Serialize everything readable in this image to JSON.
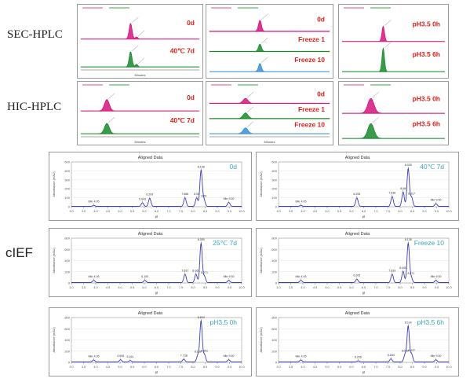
{
  "row_labels": {
    "sec": "SEC-HPLC",
    "hic": "HIC-HPLC",
    "cief": "cIEF"
  },
  "colors": {
    "pink": "#d4147d",
    "green": "#1a8a2c",
    "blue": "#3a8fd4",
    "red_label": "#e0201a",
    "teal_label": "#38a8b8",
    "cief_trace": "#3b3bc0",
    "header_red": "#e05080",
    "header_green": "#36a848",
    "header_blue": "#4068c8"
  },
  "chart_data": [
    {
      "id": "sec-a",
      "type": "line",
      "group": "SEC-HPLC",
      "axis_label": "Minutes",
      "series": [
        {
          "name": "0d",
          "color": "pink",
          "peaks": [
            {
              "x": 0.42,
              "h": 0.62,
              "w": 0.012
            },
            {
              "x": 0.47,
              "h": 0.08,
              "w": 0.01
            }
          ]
        },
        {
          "name": "40℃ 7d",
          "color": "green",
          "peaks": [
            {
              "x": 0.42,
              "h": 0.6,
              "w": 0.012
            },
            {
              "x": 0.47,
              "h": 0.1,
              "w": 0.01
            }
          ]
        }
      ]
    },
    {
      "id": "sec-b",
      "type": "line",
      "group": "SEC-HPLC",
      "axis_label": "",
      "series": [
        {
          "name": "0d",
          "color": "pink",
          "peaks": [
            {
              "x": 0.42,
              "h": 0.6,
              "w": 0.012
            }
          ]
        },
        {
          "name": "Freeze 1",
          "color": "green",
          "peaks": [
            {
              "x": 0.42,
              "h": 0.4,
              "w": 0.012
            }
          ]
        },
        {
          "name": "Freeze 10",
          "color": "blue",
          "peaks": [
            {
              "x": 0.42,
              "h": 0.45,
              "w": 0.012
            }
          ]
        }
      ]
    },
    {
      "id": "sec-c",
      "type": "line",
      "group": "SEC-HPLC",
      "axis_label": "",
      "series": [
        {
          "name": "pH3.5 0h",
          "color": "pink",
          "peaks": [
            {
              "x": 0.4,
              "h": 0.55,
              "w": 0.012
            }
          ]
        },
        {
          "name": "pH3.5 6h",
          "color": "green",
          "peaks": [
            {
              "x": 0.4,
              "h": 0.85,
              "w": 0.012
            }
          ]
        }
      ]
    },
    {
      "id": "hic-a",
      "type": "line",
      "group": "HIC-HPLC",
      "axis_label": "Minutes",
      "series": [
        {
          "name": "0d",
          "color": "pink",
          "peaks": [
            {
              "x": 0.22,
              "h": 0.55,
              "w": 0.02
            }
          ]
        },
        {
          "name": "40℃ 7d",
          "color": "green",
          "peaks": [
            {
              "x": 0.22,
              "h": 0.5,
              "w": 0.02
            }
          ]
        }
      ]
    },
    {
      "id": "hic-b",
      "type": "line",
      "group": "HIC-HPLC",
      "axis_label": "Minutes",
      "series": [
        {
          "name": "0d",
          "color": "pink",
          "peaks": [
            {
              "x": 0.3,
              "h": 0.35,
              "w": 0.02
            }
          ]
        },
        {
          "name": "Freeze 1",
          "color": "green",
          "peaks": [
            {
              "x": 0.3,
              "h": 0.4,
              "w": 0.02
            }
          ]
        },
        {
          "name": "Freeze 10",
          "color": "blue",
          "peaks": [
            {
              "x": 0.3,
              "h": 0.42,
              "w": 0.02
            }
          ]
        }
      ]
    },
    {
      "id": "hic-c",
      "type": "line",
      "group": "HIC-HPLC",
      "axis_label": "",
      "series": [
        {
          "name": "pH3.5 0h",
          "color": "pink",
          "peaks": [
            {
              "x": 0.28,
              "h": 0.65,
              "w": 0.03
            }
          ]
        },
        {
          "name": "pH3.5 6h",
          "color": "green",
          "peaks": [
            {
              "x": 0.28,
              "h": 0.65,
              "w": 0.03
            }
          ]
        }
      ]
    },
    {
      "id": "cief-0d",
      "type": "line",
      "group": "cIEF",
      "title": "Aligned Data",
      "label": "0d",
      "xlabel": "pI",
      "ylabel": "Absorbance (mAU)",
      "xlim": [
        3.0,
        10.0
      ],
      "ylim": [
        0,
        500
      ],
      "xticks": [
        "3.0",
        "3.5",
        "4.0",
        "4.5",
        "5.0",
        "5.5",
        "6.0",
        "6.5",
        "7.0",
        "7.5",
        "8.0",
        "8.5",
        "9.0",
        "9.5",
        "10.0"
      ],
      "yticks": [
        "0",
        "100",
        "200",
        "300",
        "400",
        "500"
      ],
      "peaks": [
        {
          "x": 3.92,
          "y": 12,
          "label": "Mkr 4.05",
          "w": 0.02
        },
        {
          "x": 5.92,
          "y": 40,
          "label": "5.943",
          "w": 0.02
        },
        {
          "x": 6.22,
          "y": 90,
          "label": "6.209",
          "w": 0.02
        },
        {
          "x": 7.67,
          "y": 95,
          "label": "7.686",
          "w": 0.02
        },
        {
          "x": 8.15,
          "y": 95,
          "label": "8.06",
          "w": 0.02
        },
        {
          "x": 8.33,
          "y": 400,
          "label": "8.138",
          "w": 0.02
        },
        {
          "x": 8.45,
          "y": 75,
          "label": "8.26",
          "w": 0.02
        },
        {
          "x": 9.47,
          "y": 45,
          "label": "Mkr 9.50",
          "w": 0.02
        }
      ]
    },
    {
      "id": "cief-40c",
      "type": "line",
      "group": "cIEF",
      "title": "Aligned Data",
      "label": "40℃ 7d",
      "xlabel": "pI",
      "ylabel": "Absorbance (mAU)",
      "xlim": [
        3.0,
        10.0
      ],
      "ylim": [
        0,
        500
      ],
      "xticks": [
        "3.0",
        "3.5",
        "4.0",
        "4.5",
        "5.0",
        "5.5",
        "6.0",
        "6.5",
        "7.0",
        "7.5",
        "8.0",
        "8.5",
        "9.0",
        "9.5",
        "10.0"
      ],
      "yticks": [
        "0",
        "100",
        "200",
        "300",
        "400",
        "500"
      ],
      "peaks": [
        {
          "x": 3.92,
          "y": 12,
          "label": "Mkr 4.05",
          "w": 0.02
        },
        {
          "x": 6.22,
          "y": 95,
          "label": "6.206",
          "w": 0.02
        },
        {
          "x": 7.67,
          "y": 110,
          "label": "7.638",
          "w": 0.02
        },
        {
          "x": 8.12,
          "y": 160,
          "label": "8.08",
          "w": 0.02
        },
        {
          "x": 8.33,
          "y": 420,
          "label": "8.035",
          "w": 0.02
        },
        {
          "x": 8.47,
          "y": 100,
          "label": "8.317",
          "w": 0.02
        },
        {
          "x": 9.47,
          "y": 30,
          "label": "Mkr 9.50",
          "w": 0.02
        }
      ]
    },
    {
      "id": "cief-25c",
      "type": "line",
      "group": "cIEF",
      "title": "Aligned Data",
      "label": "25℃ 7d",
      "xlabel": "pI",
      "ylabel": "Absorbance (mAU)",
      "xlim": [
        3.0,
        10.0
      ],
      "ylim": [
        0,
        800
      ],
      "xticks": [
        "3.0",
        "3.5",
        "4.0",
        "4.5",
        "5.0",
        "5.5",
        "6.0",
        "6.5",
        "7.0",
        "7.5",
        "8.0",
        "8.5",
        "9.0",
        "9.5",
        "10.0"
      ],
      "yticks": [
        "0",
        "200",
        "400",
        "600",
        "800"
      ],
      "peaks": [
        {
          "x": 3.92,
          "y": 40,
          "label": "Mkr 4.05",
          "w": 0.02
        },
        {
          "x": 6.02,
          "y": 40,
          "label": "6.100",
          "w": 0.02
        },
        {
          "x": 7.67,
          "y": 150,
          "label": "7.637",
          "w": 0.02
        },
        {
          "x": 8.12,
          "y": 150,
          "label": "8.061",
          "w": 0.02
        },
        {
          "x": 8.33,
          "y": 700,
          "label": "8.050",
          "w": 0.02
        },
        {
          "x": 8.47,
          "y": 110,
          "label": "8.271",
          "w": 0.02
        },
        {
          "x": 9.47,
          "y": 40,
          "label": "Mkr 9.50",
          "w": 0.02
        }
      ]
    },
    {
      "id": "cief-freeze10",
      "type": "line",
      "group": "cIEF",
      "title": "Aligned Data",
      "label": "Freeze 10",
      "xlabel": "pI",
      "ylabel": "Absorbance (mAU)",
      "xlim": [
        3.0,
        10.0
      ],
      "ylim": [
        0,
        800
      ],
      "xticks": [
        "3.0",
        "3.5",
        "4.0",
        "4.5",
        "5.0",
        "5.5",
        "6.0",
        "6.5",
        "7.0",
        "7.5",
        "8.0",
        "8.5",
        "9.0",
        "9.5",
        "10.0"
      ],
      "yticks": [
        "0",
        "200",
        "400",
        "600",
        "800"
      ],
      "peaks": [
        {
          "x": 3.92,
          "y": 40,
          "label": "Mkr 4.05",
          "w": 0.02
        },
        {
          "x": 6.22,
          "y": 60,
          "label": "6.205",
          "w": 0.02
        },
        {
          "x": 7.67,
          "y": 150,
          "label": "7.639",
          "w": 0.02
        },
        {
          "x": 8.12,
          "y": 200,
          "label": "8.065",
          "w": 0.02
        },
        {
          "x": 8.33,
          "y": 700,
          "label": "8.136",
          "w": 0.02
        },
        {
          "x": 8.45,
          "y": 100,
          "label": "8.271",
          "w": 0.02
        },
        {
          "x": 9.47,
          "y": 40,
          "label": "Mkr 9.50",
          "w": 0.02
        }
      ]
    },
    {
      "id": "cief-ph0h",
      "type": "line",
      "group": "cIEF",
      "title": "Aligned Data",
      "label": "pH3.5 0h",
      "xlabel": "pI",
      "ylabel": "Absorbance (mAU)",
      "xlim": [
        3.0,
        10.0
      ],
      "ylim": [
        0,
        800
      ],
      "xticks": [
        "3.0",
        "3.5",
        "4.0",
        "4.5",
        "5.0",
        "5.5",
        "6.0",
        "6.5",
        "7.0",
        "7.5",
        "8.0",
        "8.5",
        "9.0",
        "9.5",
        "10.0"
      ],
      "yticks": [
        "0",
        "200",
        "400",
        "600",
        "800"
      ],
      "peaks": [
        {
          "x": 3.92,
          "y": 35,
          "label": "Mkr 4.05",
          "w": 0.02
        },
        {
          "x": 5.02,
          "y": 40,
          "label": "4.908",
          "w": 0.02
        },
        {
          "x": 5.42,
          "y": 25,
          "label": "5.161",
          "w": 0.02
        },
        {
          "x": 7.62,
          "y": 50,
          "label": "7.738",
          "w": 0.02
        },
        {
          "x": 8.2,
          "y": 120,
          "label": "8.138",
          "w": 0.02
        },
        {
          "x": 8.33,
          "y": 730,
          "label": "8.604",
          "w": 0.02
        },
        {
          "x": 8.47,
          "y": 130,
          "label": "8.351",
          "w": 0.02
        },
        {
          "x": 9.47,
          "y": 40,
          "label": "Mkr 9.50",
          "w": 0.02
        }
      ]
    },
    {
      "id": "cief-ph6h",
      "type": "line",
      "group": "cIEF",
      "title": "Aligned Data",
      "label": "pH3.5 6h",
      "xlabel": "pI",
      "ylabel": "Absorbance (mAU)",
      "xlim": [
        3.0,
        10.0
      ],
      "ylim": [
        0,
        800
      ],
      "xticks": [
        "3.0",
        "3.5",
        "4.0",
        "4.5",
        "5.0",
        "5.5",
        "6.0",
        "6.5",
        "7.0",
        "7.5",
        "8.0",
        "8.5",
        "9.0",
        "9.5",
        "10.0"
      ],
      "yticks": [
        "0",
        "200",
        "400",
        "600",
        "800"
      ],
      "peaks": [
        {
          "x": 3.92,
          "y": 35,
          "label": "Mkr 4.05",
          "w": 0.02
        },
        {
          "x": 6.27,
          "y": 20,
          "label": "6.205",
          "w": 0.02
        },
        {
          "x": 7.62,
          "y": 55,
          "label": "8.284",
          "w": 0.02
        },
        {
          "x": 8.2,
          "y": 130,
          "label": "8.069",
          "w": 0.02
        },
        {
          "x": 8.33,
          "y": 640,
          "label": "8.114",
          "w": 0.02
        },
        {
          "x": 8.47,
          "y": 140,
          "label": "8.437",
          "w": 0.02
        },
        {
          "x": 9.47,
          "y": 40,
          "label": "Mkr 9.50",
          "w": 0.02
        }
      ]
    }
  ]
}
